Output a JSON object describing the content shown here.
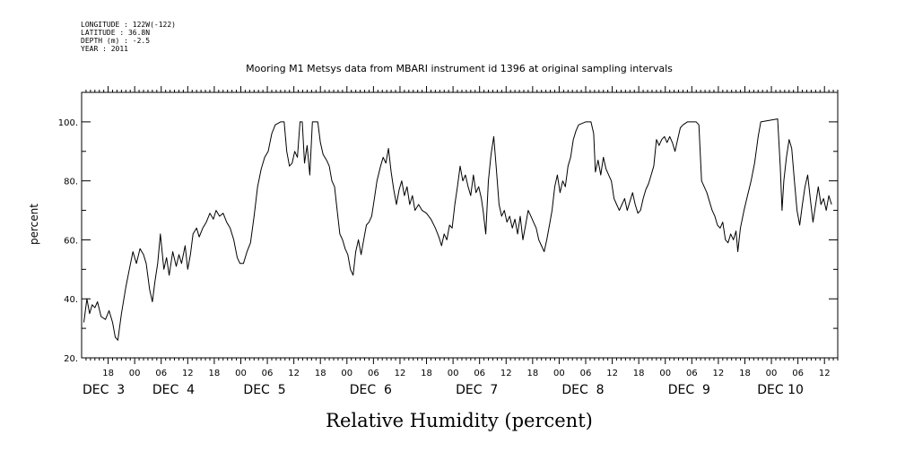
{
  "header": {
    "meta_lines": [
      "LONGITUDE : 122W(-122)",
      "LATITUDE : 36.8N",
      "DEPTH (m) : -2.5",
      "YEAR : 2011"
    ]
  },
  "chart_data": {
    "type": "line",
    "title": "Mooring M1 Metsys data from MBARI instrument id 1396 at original sampling intervals",
    "xlabel": "Relative Humidity (percent)",
    "ylabel": "percent",
    "ylim": [
      20,
      110
    ],
    "y_ticks": [
      20,
      40,
      60,
      80,
      100
    ],
    "y_tick_labels": [
      "20.",
      "40.",
      "60.",
      "80.",
      "100."
    ],
    "x_range_hours": [
      12,
      183
    ],
    "x_ticks_hours": [
      18,
      24,
      30,
      36,
      42,
      48,
      54,
      60,
      66,
      72,
      78,
      84,
      90,
      96,
      102,
      108,
      114,
      120,
      126,
      132,
      138,
      144,
      150,
      156,
      162,
      168,
      174,
      180
    ],
    "x_tick_labels": [
      "18",
      "00",
      "06",
      "12",
      "18",
      "00",
      "06",
      "12",
      "18",
      "00",
      "06",
      "12",
      "18",
      "00",
      "06",
      "12",
      "18",
      "00",
      "06",
      "12",
      "18",
      "00",
      "06",
      "12",
      "18",
      "00",
      "06",
      "12"
    ],
    "x_day_labels": [
      "DEC  3",
      "DEC  4",
      "DEC  5",
      "DEC  6",
      "DEC  7",
      "DEC  8",
      "DEC  9",
      "DEC 10"
    ],
    "x_day_label_hours": [
      12.2,
      28,
      48.6,
      72.6,
      96.6,
      120.6,
      144.6,
      164.8
    ],
    "grid": false,
    "series": [
      {
        "values": [
          [
            12.5,
            32
          ],
          [
            13.2,
            40
          ],
          [
            13.8,
            35
          ],
          [
            14.4,
            38
          ],
          [
            15,
            37
          ],
          [
            15.6,
            39
          ],
          [
            16.4,
            34
          ],
          [
            17.4,
            33
          ],
          [
            18.2,
            36
          ],
          [
            19,
            32
          ],
          [
            19.6,
            27
          ],
          [
            20.2,
            26
          ],
          [
            21,
            35
          ],
          [
            22,
            44
          ],
          [
            22.8,
            50
          ],
          [
            23.6,
            56
          ],
          [
            24.4,
            52
          ],
          [
            25.2,
            57
          ],
          [
            26,
            55
          ],
          [
            26.6,
            52
          ],
          [
            27.4,
            43
          ],
          [
            28,
            39
          ],
          [
            28.6,
            46
          ],
          [
            29.2,
            52
          ],
          [
            29.8,
            62
          ],
          [
            30.6,
            50
          ],
          [
            31.2,
            54
          ],
          [
            31.8,
            48
          ],
          [
            32.6,
            56
          ],
          [
            33.4,
            51
          ],
          [
            34,
            55
          ],
          [
            34.6,
            52
          ],
          [
            35.4,
            58
          ],
          [
            36,
            50
          ],
          [
            36.6,
            55
          ],
          [
            37.2,
            62
          ],
          [
            38,
            64
          ],
          [
            38.6,
            61
          ],
          [
            39.4,
            64
          ],
          [
            40.2,
            66
          ],
          [
            41,
            69
          ],
          [
            41.8,
            67
          ],
          [
            42.4,
            70
          ],
          [
            43.2,
            68
          ],
          [
            44,
            69
          ],
          [
            44.8,
            66
          ],
          [
            45.6,
            64
          ],
          [
            46.4,
            60
          ],
          [
            47.2,
            54
          ],
          [
            47.8,
            52
          ],
          [
            48.6,
            52
          ],
          [
            49.4,
            56
          ],
          [
            50.2,
            59
          ],
          [
            51,
            68
          ],
          [
            51.8,
            78
          ],
          [
            52.6,
            84
          ],
          [
            53.4,
            88
          ],
          [
            54.2,
            90
          ],
          [
            55,
            96
          ],
          [
            55.8,
            99
          ],
          [
            57,
            100
          ],
          [
            57.8,
            100
          ],
          [
            58.4,
            90
          ],
          [
            59,
            85
          ],
          [
            59.6,
            86
          ],
          [
            60.2,
            90
          ],
          [
            60.8,
            88
          ],
          [
            61.4,
            100
          ],
          [
            61.9,
            100
          ],
          [
            62.4,
            86
          ],
          [
            63,
            92
          ],
          [
            63.6,
            82
          ],
          [
            64.2,
            100
          ],
          [
            65.4,
            100
          ],
          [
            66,
            93
          ],
          [
            66.6,
            89
          ],
          [
            67.4,
            87
          ],
          [
            68,
            85
          ],
          [
            68.6,
            80
          ],
          [
            69.2,
            78
          ],
          [
            69.8,
            70
          ],
          [
            70.4,
            62
          ],
          [
            71,
            60
          ],
          [
            71.6,
            57
          ],
          [
            72.2,
            55
          ],
          [
            72.8,
            50
          ],
          [
            73.4,
            48
          ],
          [
            74,
            56
          ],
          [
            74.6,
            60
          ],
          [
            75.2,
            55
          ],
          [
            75.8,
            60
          ],
          [
            76.4,
            65
          ],
          [
            77,
            66
          ],
          [
            77.6,
            68
          ],
          [
            78.2,
            74
          ],
          [
            78.8,
            80
          ],
          [
            79.6,
            85
          ],
          [
            80.2,
            88
          ],
          [
            80.8,
            86
          ],
          [
            81.4,
            91
          ],
          [
            82,
            83
          ],
          [
            82.6,
            77
          ],
          [
            83.2,
            72
          ],
          [
            83.8,
            77
          ],
          [
            84.4,
            80
          ],
          [
            85,
            75
          ],
          [
            85.6,
            78
          ],
          [
            86.2,
            72
          ],
          [
            86.8,
            75
          ],
          [
            87.4,
            70
          ],
          [
            88.2,
            72
          ],
          [
            89,
            70
          ],
          [
            90,
            69
          ],
          [
            91,
            67
          ],
          [
            92,
            64
          ],
          [
            92.8,
            61
          ],
          [
            93.4,
            58
          ],
          [
            94,
            62
          ],
          [
            94.6,
            60
          ],
          [
            95.2,
            65
          ],
          [
            95.8,
            64
          ],
          [
            96.4,
            72
          ],
          [
            97,
            78
          ],
          [
            97.6,
            85
          ],
          [
            98.2,
            80
          ],
          [
            98.8,
            82
          ],
          [
            99.4,
            78
          ],
          [
            100,
            75
          ],
          [
            100.6,
            82
          ],
          [
            101.2,
            76
          ],
          [
            101.8,
            78
          ],
          [
            102.4,
            74
          ],
          [
            102.8,
            70
          ],
          [
            103.4,
            62
          ],
          [
            104,
            80
          ],
          [
            104.6,
            89
          ],
          [
            105.2,
            95
          ],
          [
            105.8,
            84
          ],
          [
            106.4,
            72
          ],
          [
            107,
            68
          ],
          [
            107.6,
            70
          ],
          [
            108.2,
            66
          ],
          [
            108.8,
            68
          ],
          [
            109.4,
            64
          ],
          [
            110,
            67
          ],
          [
            110.6,
            62
          ],
          [
            111.2,
            68
          ],
          [
            111.8,
            60
          ],
          [
            112.4,
            65
          ],
          [
            113,
            70
          ],
          [
            113.6,
            68
          ],
          [
            114.2,
            66
          ],
          [
            114.8,
            64
          ],
          [
            115.4,
            60
          ],
          [
            116,
            58
          ],
          [
            116.6,
            56
          ],
          [
            117.2,
            60
          ],
          [
            117.8,
            65
          ],
          [
            118.4,
            70
          ],
          [
            119,
            78
          ],
          [
            119.6,
            82
          ],
          [
            120.2,
            76
          ],
          [
            120.8,
            80
          ],
          [
            121.4,
            78
          ],
          [
            122,
            85
          ],
          [
            122.6,
            88
          ],
          [
            123.2,
            94
          ],
          [
            123.8,
            97
          ],
          [
            124.4,
            99
          ],
          [
            126,
            100
          ],
          [
            127.2,
            100
          ],
          [
            127.8,
            96
          ],
          [
            128.2,
            83
          ],
          [
            128.8,
            87
          ],
          [
            129.4,
            82
          ],
          [
            130,
            88
          ],
          [
            130.6,
            84
          ],
          [
            131.2,
            82
          ],
          [
            131.8,
            80
          ],
          [
            132.4,
            74
          ],
          [
            133,
            72
          ],
          [
            133.6,
            70
          ],
          [
            134.2,
            72
          ],
          [
            134.8,
            74
          ],
          [
            135.4,
            70
          ],
          [
            136,
            73
          ],
          [
            136.6,
            76
          ],
          [
            137.2,
            72
          ],
          [
            137.8,
            69
          ],
          [
            138.4,
            70
          ],
          [
            139,
            74
          ],
          [
            139.6,
            77
          ],
          [
            140.2,
            79
          ],
          [
            140.8,
            82
          ],
          [
            141.4,
            85
          ],
          [
            142,
            94
          ],
          [
            142.6,
            92
          ],
          [
            143.2,
            94
          ],
          [
            143.8,
            95
          ],
          [
            144.4,
            93
          ],
          [
            145,
            95
          ],
          [
            145.6,
            93
          ],
          [
            146.2,
            90
          ],
          [
            146.8,
            94
          ],
          [
            147.4,
            98
          ],
          [
            148,
            99
          ],
          [
            149,
            100
          ],
          [
            151,
            100
          ],
          [
            151.6,
            99
          ],
          [
            152.2,
            80
          ],
          [
            152.8,
            78
          ],
          [
            153.4,
            76
          ],
          [
            154,
            73
          ],
          [
            154.6,
            70
          ],
          [
            155.2,
            68
          ],
          [
            155.8,
            65
          ],
          [
            156.4,
            64
          ],
          [
            157,
            66
          ],
          [
            157.6,
            60
          ],
          [
            158.2,
            59
          ],
          [
            158.8,
            62
          ],
          [
            159.4,
            60
          ],
          [
            160,
            63
          ],
          [
            160.4,
            56
          ],
          [
            161,
            64
          ],
          [
            161.8,
            70
          ],
          [
            162.6,
            75
          ],
          [
            163.4,
            80
          ],
          [
            164.2,
            86
          ],
          [
            165,
            95
          ],
          [
            165.6,
            100
          ],
          [
            169.4,
            101
          ],
          [
            170,
            85
          ],
          [
            170.4,
            70
          ],
          [
            170.8,
            80
          ],
          [
            171.4,
            88
          ],
          [
            172,
            94
          ],
          [
            172.6,
            91
          ],
          [
            173.2,
            80
          ],
          [
            173.8,
            70
          ],
          [
            174.4,
            65
          ],
          [
            175,
            72
          ],
          [
            175.6,
            78
          ],
          [
            176.2,
            82
          ],
          [
            176.8,
            74
          ],
          [
            177.4,
            66
          ],
          [
            178,
            72
          ],
          [
            178.6,
            78
          ],
          [
            179.2,
            72
          ],
          [
            179.8,
            74
          ],
          [
            180.4,
            70
          ],
          [
            181,
            75
          ],
          [
            181.6,
            72
          ]
        ]
      }
    ]
  }
}
